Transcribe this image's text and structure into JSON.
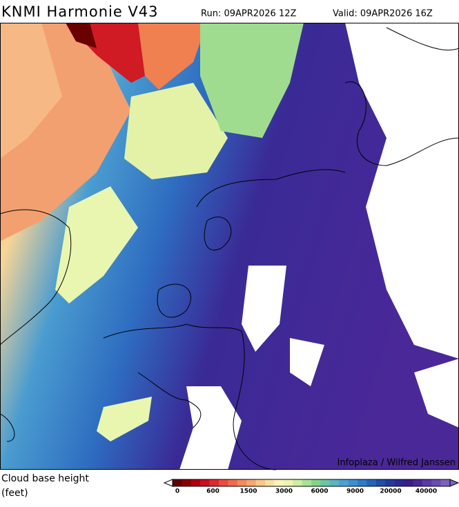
{
  "header": {
    "title": "KNMI Harmonie V43",
    "run": "Run: 09APR2026 12Z",
    "valid": "Valid: 09APR2026 16Z"
  },
  "credit": "Infoplaza / Wilfred Janssen",
  "legend": {
    "title": [
      "Cloud base height",
      "(feet)"
    ],
    "colors": [
      "#600000",
      "#8a0000",
      "#b0000c",
      "#c81020",
      "#e02830",
      "#ec4c3c",
      "#f06a4c",
      "#f48a5c",
      "#f6a86e",
      "#f9c686",
      "#fce0a2",
      "#fdf4b8",
      "#ecf6ae",
      "#cdeea2",
      "#a8e294",
      "#84d48a",
      "#6cc6a4",
      "#5ab4c4",
      "#4aa2d2",
      "#3c90d2",
      "#2e7cc6",
      "#2464ba",
      "#1f4eae",
      "#22399e",
      "#2a2896",
      "#3a1e8e",
      "#4a2898",
      "#5a3aa6",
      "#6a4cb4",
      "#7c62c0"
    ],
    "ticks": [
      "0",
      "600",
      "1500",
      "3000",
      "6000",
      "9000",
      "20000",
      "40000"
    ]
  }
}
